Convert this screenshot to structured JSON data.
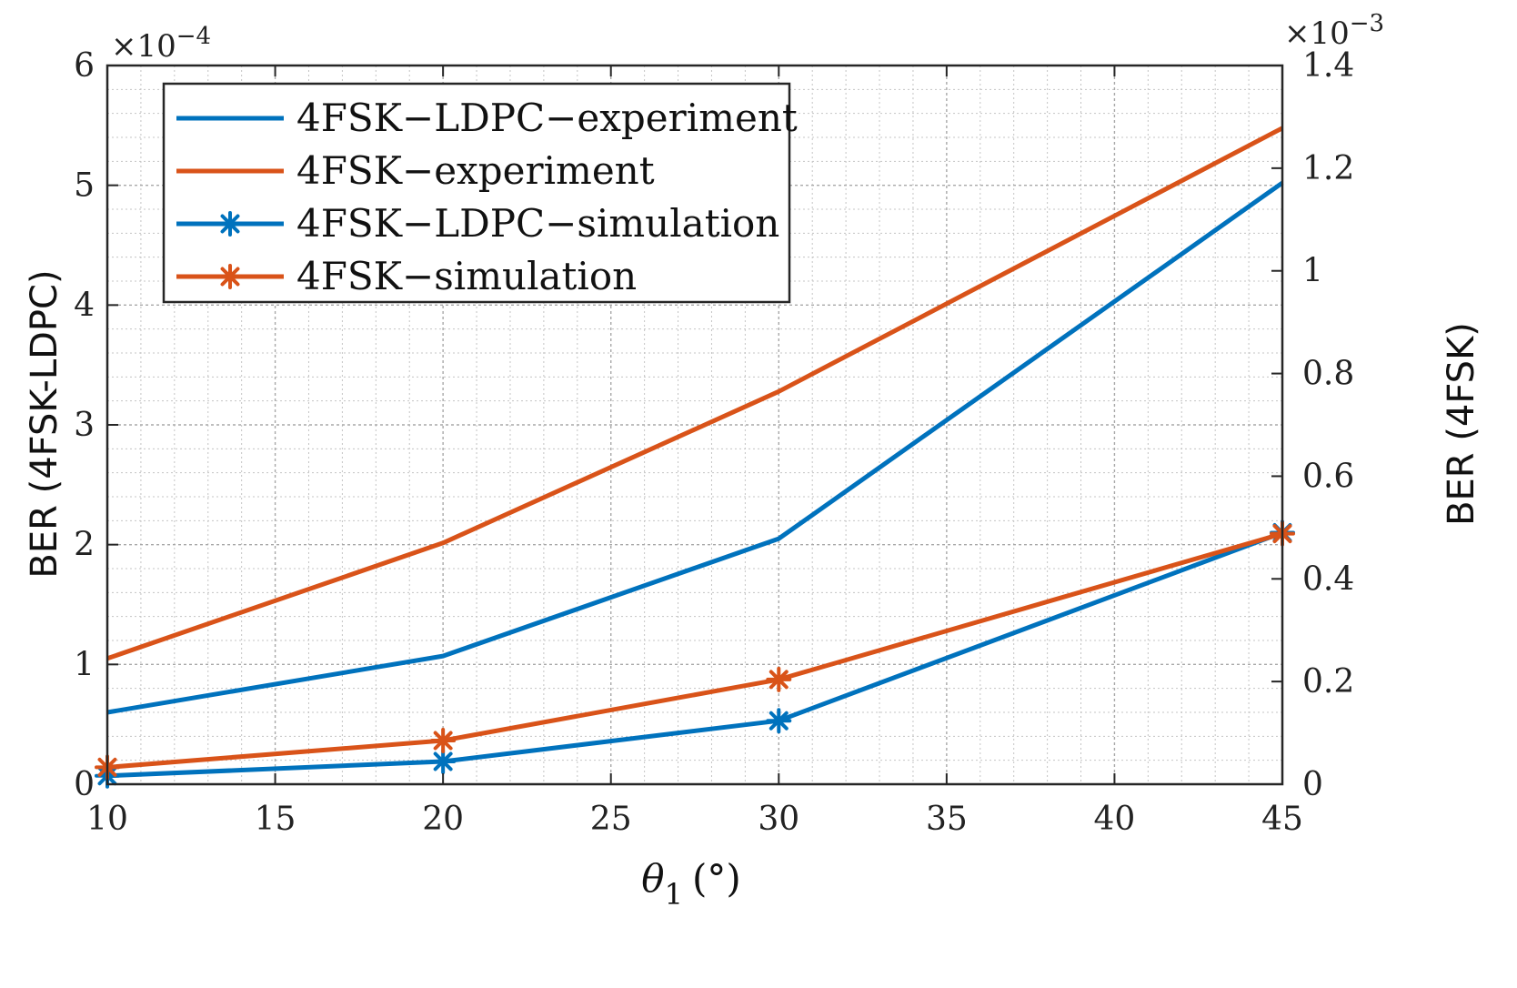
{
  "chart_data": {
    "type": "line",
    "title": "",
    "xlabel_symbol": "θ",
    "xlabel_sub": "1",
    "xlabel_unit": "(°)",
    "ylabel_left": "BER (4FSK-LDPC)",
    "ylabel_right": "BER (4FSK)",
    "left_exponent_base": "×10",
    "left_exponent_power": "−4",
    "right_exponent_base": "×10",
    "right_exponent_power": "−3",
    "xlim": [
      10,
      45
    ],
    "ylim_left": [
      0,
      6
    ],
    "ylim_right": [
      0,
      1.4
    ],
    "x_ticks": [
      10,
      15,
      20,
      25,
      30,
      35,
      40,
      45
    ],
    "x_tick_labels": [
      "10",
      "15",
      "20",
      "25",
      "30",
      "35",
      "40",
      "45"
    ],
    "y_left_ticks": [
      0,
      1,
      2,
      3,
      4,
      5,
      6
    ],
    "y_left_tick_labels": [
      "0",
      "1",
      "2",
      "3",
      "4",
      "5",
      "6"
    ],
    "y_right_ticks": [
      0,
      0.2,
      0.4,
      0.6,
      0.8,
      1,
      1.2,
      1.4
    ],
    "y_right_tick_labels": [
      "0",
      "0.2",
      "0.4",
      "0.6",
      "0.8",
      "1",
      "1.2",
      "1.4"
    ],
    "grid": true,
    "minor_grid": true,
    "legend_position": "top-left",
    "series": [
      {
        "name": "4FSK−LDPC−experiment",
        "axis": "left",
        "color": "#0072BD",
        "marker": "none",
        "x": [
          10,
          20,
          30,
          45
        ],
        "y": [
          0.6,
          1.07,
          2.05,
          5.02
        ]
      },
      {
        "name": "4FSK−experiment",
        "axis": "right",
        "color": "#D95319",
        "marker": "none",
        "x": [
          10,
          20,
          30,
          45
        ],
        "y": [
          0.245,
          0.47,
          0.765,
          1.278
        ]
      },
      {
        "name": "4FSK−LDPC−simulation",
        "axis": "left",
        "color": "#0072BD",
        "marker": "asterisk",
        "x": [
          10,
          20,
          30,
          45
        ],
        "y": [
          0.07,
          0.19,
          0.53,
          2.1
        ]
      },
      {
        "name": "4FSK−simulation",
        "axis": "right",
        "color": "#D95319",
        "marker": "asterisk",
        "x": [
          10,
          20,
          30,
          45
        ],
        "y": [
          0.033,
          0.085,
          0.204,
          0.488
        ]
      }
    ]
  }
}
